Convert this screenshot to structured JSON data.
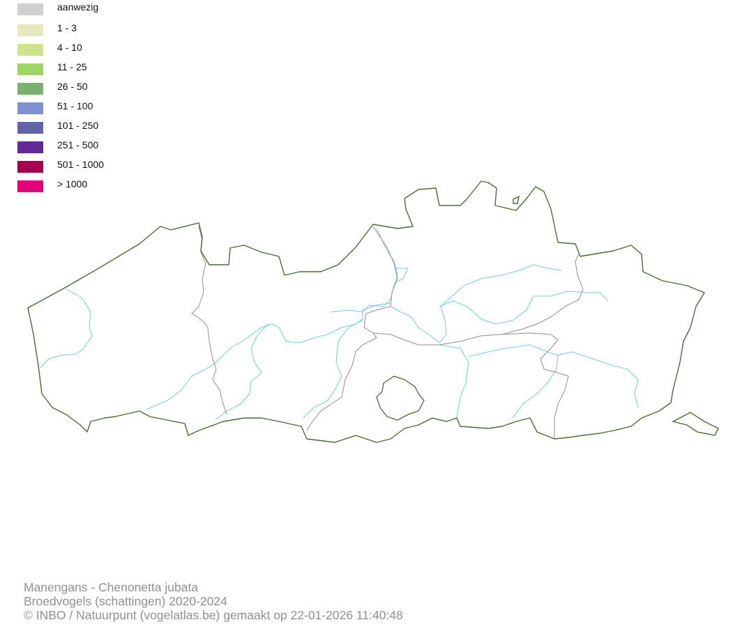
{
  "legend": {
    "items": [
      {
        "label": "aanwezig",
        "color": "#d0d0d0"
      },
      {
        "label": "1 - 3",
        "color": "#e6e8c0"
      },
      {
        "label": "4 - 10",
        "color": "#cde38c"
      },
      {
        "label": "11 - 25",
        "color": "#9ed468"
      },
      {
        "label": "26 - 50",
        "color": "#79b26f"
      },
      {
        "label": "51 - 100",
        "color": "#7f90d0"
      },
      {
        "label": "101 - 250",
        "color": "#6164a5"
      },
      {
        "label": "251 - 500",
        "color": "#632993"
      },
      {
        "label": "501 - 1000",
        "color": "#a6004f"
      },
      {
        "label": "> 1000",
        "color": "#e3007a"
      }
    ]
  },
  "map": {
    "region_border_color": "#4a6b35",
    "province_border_color": "#9a8a86",
    "river_color": "#74c9df"
  },
  "footer": {
    "species": "Manengans - Chenonetta jubata",
    "dataset": "Broedvogels (schattingen) 2020-2024",
    "credit": "© INBO / Natuurpunt (vogelatlas.be) gemaakt op 22-01-2026 11:40:48"
  }
}
